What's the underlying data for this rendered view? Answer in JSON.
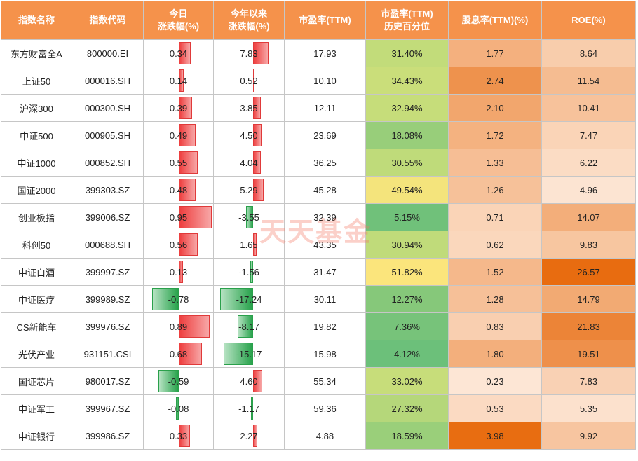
{
  "headers": [
    "指数名称",
    "指数代码",
    "今日\n涨跌幅(%)",
    "今年以来\n涨跌幅(%)",
    "市盈率(TTM)",
    "市盈率(TTM)\n历史百分位",
    "股息率(TTM)(%)",
    "ROE(%)"
  ],
  "watermark": "天天基金",
  "colors": {
    "header_bg": "#f5924b",
    "bar_pos": "#ee3e3e",
    "bar_neg": "#27a24b"
  },
  "chart_data": {
    "type": "table",
    "columns": [
      "指数名称",
      "指数代码",
      "今日涨跌幅(%)",
      "今年以来涨跌幅(%)",
      "市盈率(TTM)",
      "市盈率(TTM)历史百分位",
      "股息率(TTM)(%)",
      "ROE(%)"
    ],
    "rows": [
      {
        "name": "东方财富全A",
        "code": "800000.EI",
        "today": "0.34",
        "ytd": "7.83",
        "pe": "17.93",
        "pct": "31.40%",
        "div": "1.77",
        "roe": "8.64"
      },
      {
        "name": "上证50",
        "code": "000016.SH",
        "today": "0.14",
        "ytd": "0.52",
        "pe": "10.10",
        "pct": "34.43%",
        "div": "2.74",
        "roe": "11.54"
      },
      {
        "name": "沪深300",
        "code": "000300.SH",
        "today": "0.39",
        "ytd": "3.85",
        "pe": "12.11",
        "pct": "32.94%",
        "div": "2.10",
        "roe": "10.41"
      },
      {
        "name": "中证500",
        "code": "000905.SH",
        "today": "0.49",
        "ytd": "4.50",
        "pe": "23.69",
        "pct": "18.08%",
        "div": "1.72",
        "roe": "7.47"
      },
      {
        "name": "中证1000",
        "code": "000852.SH",
        "today": "0.55",
        "ytd": "4.04",
        "pe": "36.25",
        "pct": "30.55%",
        "div": "1.33",
        "roe": "6.22"
      },
      {
        "name": "国证2000",
        "code": "399303.SZ",
        "today": "0.48",
        "ytd": "5.29",
        "pe": "45.28",
        "pct": "49.54%",
        "div": "1.26",
        "roe": "4.96"
      },
      {
        "name": "创业板指",
        "code": "399006.SZ",
        "today": "0.95",
        "ytd": "-3.55",
        "pe": "32.39",
        "pct": "5.15%",
        "div": "0.71",
        "roe": "14.07"
      },
      {
        "name": "科创50",
        "code": "000688.SH",
        "today": "0.56",
        "ytd": "1.65",
        "pe": "43.35",
        "pct": "30.94%",
        "div": "0.62",
        "roe": "9.83"
      },
      {
        "name": "中证白酒",
        "code": "399997.SZ",
        "today": "0.13",
        "ytd": "-1.56",
        "pe": "31.47",
        "pct": "51.82%",
        "div": "1.52",
        "roe": "26.57"
      },
      {
        "name": "中证医疗",
        "code": "399989.SZ",
        "today": "-0.78",
        "ytd": "-17.24",
        "pe": "30.11",
        "pct": "12.27%",
        "div": "1.28",
        "roe": "14.79"
      },
      {
        "name": "CS新能车",
        "code": "399976.SZ",
        "today": "0.89",
        "ytd": "-8.17",
        "pe": "19.82",
        "pct": "7.36%",
        "div": "0.83",
        "roe": "21.83"
      },
      {
        "name": "光伏产业",
        "code": "931151.CSI",
        "today": "0.68",
        "ytd": "-15.17",
        "pe": "15.98",
        "pct": "4.12%",
        "div": "1.80",
        "roe": "19.51"
      },
      {
        "name": "国证芯片",
        "code": "980017.SZ",
        "today": "-0.59",
        "ytd": "4.60",
        "pe": "55.34",
        "pct": "33.02%",
        "div": "0.23",
        "roe": "7.83"
      },
      {
        "name": "中证军工",
        "code": "399967.SZ",
        "today": "-0.08",
        "ytd": "-1.17",
        "pe": "59.36",
        "pct": "27.32%",
        "div": "0.53",
        "roe": "5.35"
      },
      {
        "name": "中证银行",
        "code": "399986.SZ",
        "today": "0.33",
        "ytd": "2.27",
        "pe": "4.88",
        "pct": "18.59%",
        "div": "3.98",
        "roe": "9.92"
      }
    ]
  }
}
